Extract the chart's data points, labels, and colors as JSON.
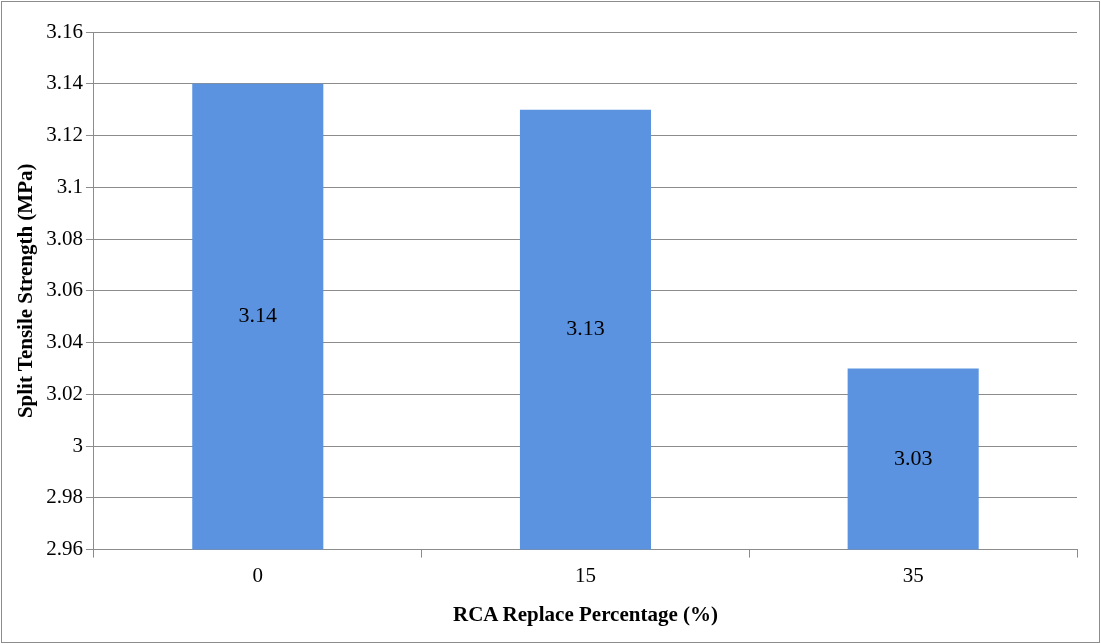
{
  "chart_data": {
    "type": "bar",
    "xlabel": "RCA Replace Percentage (%)",
    "ylabel": "Split Tensile Strength (MPa)",
    "categories": [
      "0",
      "15",
      "35"
    ],
    "values": [
      3.14,
      3.13,
      3.03
    ],
    "color": "#5b93e0",
    "ylim": [
      2.96,
      3.16
    ],
    "yticks": [
      2.96,
      2.98,
      3,
      3.02,
      3.04,
      3.06,
      3.08,
      3.1,
      3.12,
      3.14,
      3.16
    ],
    "grid": "y",
    "data_labels": true,
    "legend": false
  }
}
